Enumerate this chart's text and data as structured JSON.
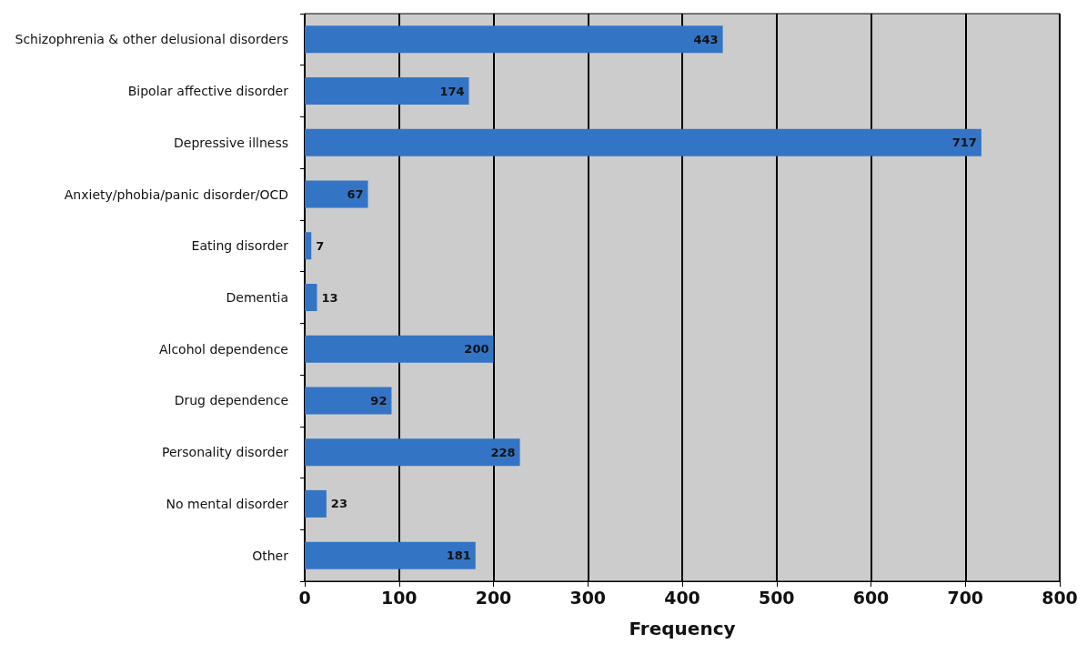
{
  "chart_data": {
    "type": "bar",
    "orientation": "horizontal",
    "xlabel": "Frequency",
    "categories": [
      "Schizophrenia & other delusional disorders",
      "Bipolar affective disorder",
      "Depressive illness",
      "Anxiety/phobia/panic disorder/OCD",
      "Eating disorder",
      "Dementia",
      "Alcohol dependence",
      "Drug dependence",
      "Personality disorder",
      "No mental disorder",
      "Other"
    ],
    "values": [
      443,
      174,
      717,
      67,
      7,
      13,
      200,
      92,
      228,
      23,
      181
    ],
    "color": "#3474c4",
    "xlim": [
      0,
      800
    ],
    "xticks": [
      0,
      100,
      200,
      300,
      400,
      500,
      600,
      700,
      800
    ],
    "grid": "x",
    "data_labels": true
  }
}
